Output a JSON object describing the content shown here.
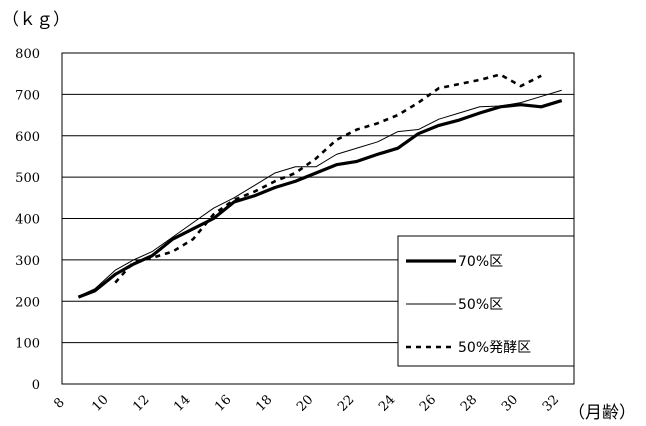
{
  "chart_data": {
    "type": "line",
    "title": "",
    "ylabel": "（ｋｇ）",
    "xlabel": "（月齢）",
    "ylim": [
      0,
      800
    ],
    "yticks": [
      0,
      100,
      200,
      300,
      400,
      500,
      600,
      700,
      800
    ],
    "xlim": [
      8,
      33
    ],
    "xticks": [
      8,
      10,
      12,
      14,
      16,
      18,
      20,
      22,
      24,
      26,
      28,
      30,
      32
    ],
    "grid": "horizontal",
    "legend_position": "lower-right",
    "series": [
      {
        "name": "70%区",
        "color": "#000000",
        "style": "thick-solid",
        "x": [
          8.8,
          9.6,
          10.6,
          11.5,
          12.4,
          13.4,
          14.4,
          15.4,
          16.4,
          17.4,
          18.4,
          19.4,
          20.4,
          21.4,
          22.4,
          23.4,
          24.4,
          25.4,
          26.4,
          27.4,
          28.4,
          29.4,
          30.4,
          31.4,
          32.4
        ],
        "values": [
          210,
          225,
          265,
          290,
          310,
          350,
          375,
          400,
          440,
          455,
          475,
          490,
          510,
          530,
          538,
          555,
          570,
          605,
          625,
          638,
          655,
          670,
          675,
          670,
          685
        ]
      },
      {
        "name": "50%区",
        "color": "#000000",
        "style": "thin-solid",
        "x": [
          8.8,
          9.6,
          10.6,
          11.5,
          12.4,
          13.4,
          14.4,
          15.4,
          16.4,
          17.4,
          18.4,
          19.4,
          20.4,
          21.4,
          22.4,
          23.4,
          24.4,
          25.4,
          26.4,
          27.4,
          28.4,
          29.4,
          30.4,
          31.4,
          32.4
        ],
        "values": [
          212,
          230,
          275,
          300,
          320,
          355,
          390,
          425,
          450,
          480,
          510,
          525,
          525,
          555,
          570,
          585,
          610,
          615,
          640,
          655,
          670,
          672,
          680,
          695,
          710
        ]
      },
      {
        "name": "50%発酵区",
        "color": "#000000",
        "style": "dotted",
        "x": [
          10.6,
          11.5,
          12.4,
          13.4,
          14.4,
          15.4,
          16.4,
          17.4,
          18.4,
          19.4,
          20.4,
          21.4,
          22.4,
          23.4,
          24.4,
          25.4,
          26.4,
          27.4,
          28.4,
          29.4,
          30.4,
          31.4
        ],
        "values": [
          245,
          295,
          305,
          320,
          350,
          410,
          445,
          465,
          490,
          510,
          545,
          590,
          615,
          630,
          650,
          680,
          715,
          725,
          735,
          748,
          720,
          745
        ]
      }
    ]
  }
}
